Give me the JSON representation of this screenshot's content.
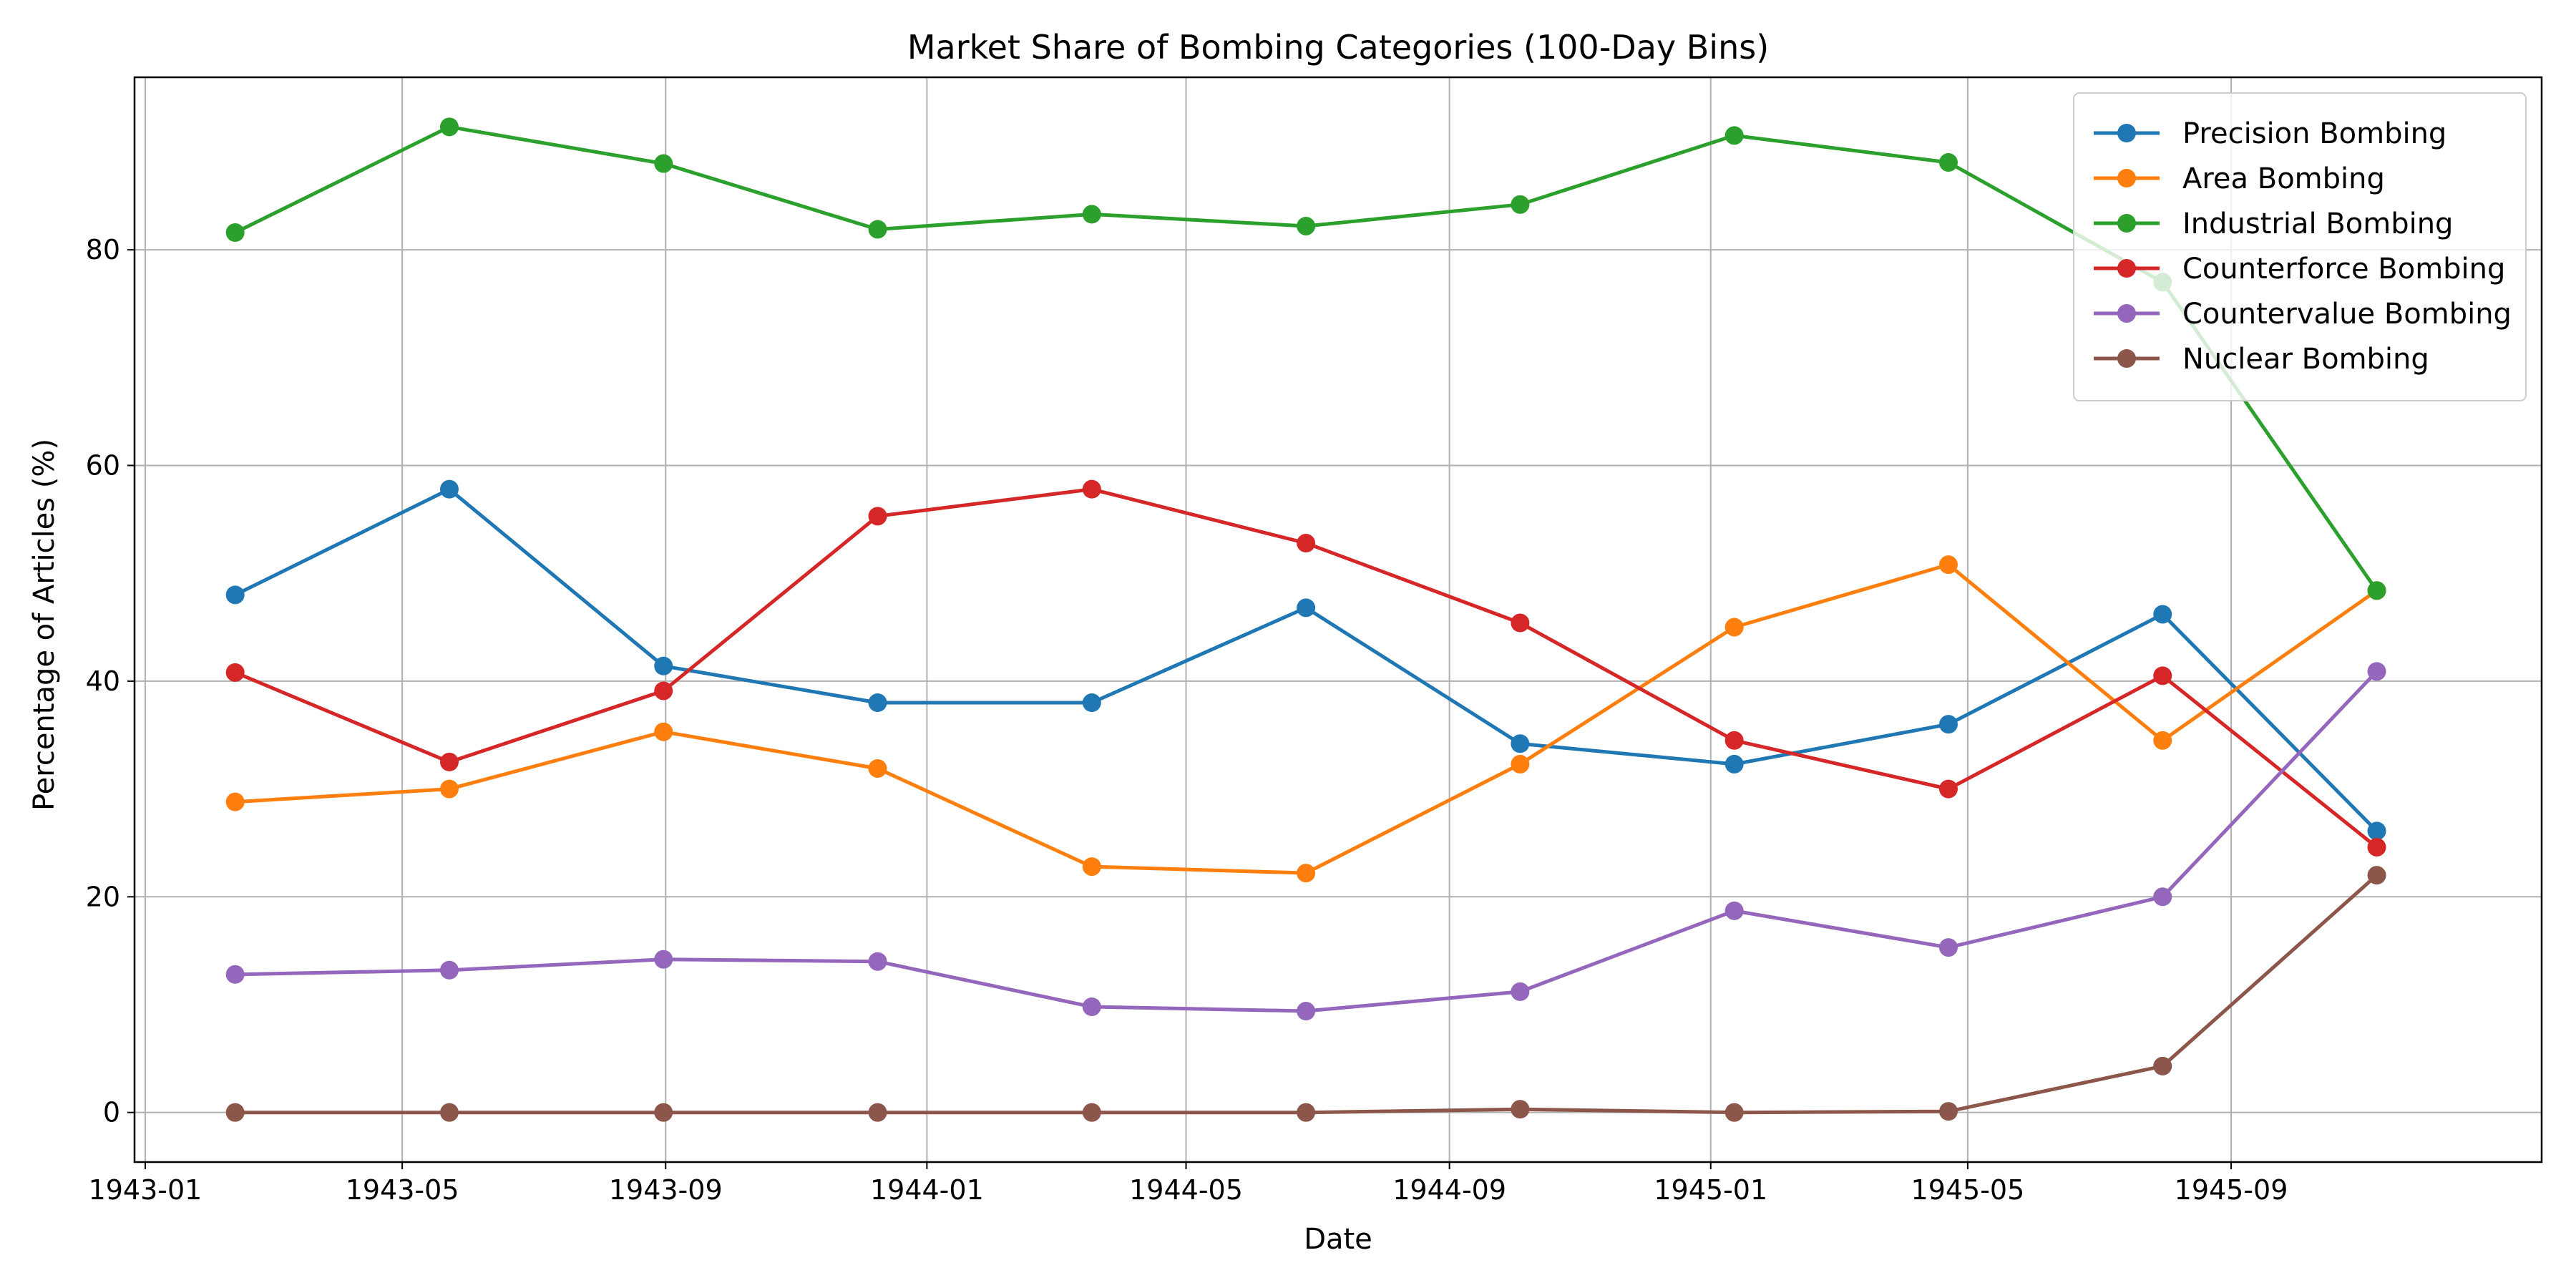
{
  "chart_data": {
    "type": "line",
    "title": "Market Share of Bombing Categories (100-Day Bins)",
    "xlabel": "Date",
    "ylabel": "Percentage of Articles (%)",
    "x": [
      "1943-02-12",
      "1943-05-23",
      "1943-08-31",
      "1943-12-09",
      "1944-03-18",
      "1944-06-26",
      "1944-10-04",
      "1945-01-12",
      "1945-04-22",
      "1945-07-31",
      "1945-11-08"
    ],
    "x_ticks": [
      "1943-01",
      "1943-05",
      "1943-09",
      "1944-01",
      "1944-05",
      "1944-09",
      "1945-01",
      "1945-05",
      "1945-09"
    ],
    "xlim": [
      "1942-12-27",
      "1946-01-24"
    ],
    "y_ticks": [
      0,
      20,
      40,
      60,
      80
    ],
    "ylim": [
      -4.6,
      96
    ],
    "grid": true,
    "legend_position": "upper right",
    "series": [
      {
        "name": "Precision Bombing",
        "color": "#1f77b4",
        "values": [
          48.0,
          57.8,
          41.4,
          38.0,
          38.0,
          46.8,
          34.2,
          32.3,
          36.0,
          46.2,
          26.1
        ]
      },
      {
        "name": "Area Bombing",
        "color": "#ff7f0e",
        "values": [
          28.8,
          30.0,
          35.3,
          31.9,
          22.8,
          22.2,
          32.3,
          45.0,
          50.8,
          34.5,
          48.4
        ]
      },
      {
        "name": "Industrial Bombing",
        "color": "#2ca02c",
        "values": [
          81.6,
          91.4,
          88.0,
          81.9,
          83.3,
          82.2,
          84.2,
          90.6,
          88.1,
          77.0,
          48.4
        ]
      },
      {
        "name": "Counterforce Bombing",
        "color": "#d62728",
        "values": [
          40.8,
          32.5,
          39.1,
          55.3,
          57.8,
          52.8,
          45.4,
          34.5,
          30.0,
          40.5,
          24.6
        ]
      },
      {
        "name": "Countervalue Bombing",
        "color": "#9467bd",
        "values": [
          12.8,
          13.2,
          14.2,
          14.0,
          9.8,
          9.4,
          11.2,
          18.7,
          15.3,
          20.0,
          40.9
        ]
      },
      {
        "name": "Nuclear Bombing",
        "color": "#8c564b",
        "values": [
          0.0,
          0.0,
          0.0,
          0.0,
          0.0,
          0.0,
          0.3,
          0.0,
          0.1,
          4.3,
          22.0
        ]
      }
    ]
  }
}
